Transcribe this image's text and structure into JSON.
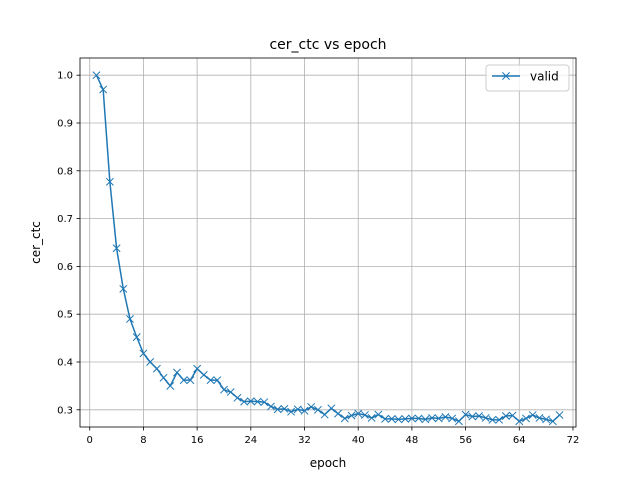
{
  "chart_data": {
    "type": "line",
    "title": "cer_ctc vs epoch",
    "xlabel": "epoch",
    "ylabel": "cer_ctc",
    "xlim": [
      -1.45,
      72.45
    ],
    "ylim": [
      0.264,
      1.036
    ],
    "xticks": [
      0,
      8,
      16,
      24,
      32,
      40,
      48,
      56,
      64,
      72
    ],
    "yticks": [
      0.3,
      0.4,
      0.5,
      0.6,
      0.7,
      0.8,
      0.9,
      1.0
    ],
    "ytick_labels": [
      "0.3",
      "0.4",
      "0.5",
      "0.6",
      "0.7",
      "0.8",
      "0.9",
      "1.0"
    ],
    "grid": true,
    "legend_position": "top-right",
    "series": [
      {
        "name": "valid",
        "color": "#1f77b4",
        "marker": "x",
        "x": [
          1,
          2,
          3,
          4,
          5,
          6,
          7,
          8,
          9,
          10,
          11,
          12,
          13,
          14,
          15,
          16,
          17,
          18,
          19,
          20,
          21,
          22,
          23,
          24,
          25,
          26,
          27,
          28,
          29,
          30,
          31,
          32,
          33,
          34,
          35,
          36,
          37,
          38,
          39,
          40,
          41,
          42,
          43,
          44,
          45,
          46,
          47,
          48,
          49,
          50,
          51,
          52,
          53,
          54,
          55,
          56,
          57,
          58,
          59,
          60,
          61,
          62,
          63,
          64,
          65,
          66,
          67,
          68,
          69,
          70
        ],
        "y": [
          1.0,
          0.97,
          0.777,
          0.638,
          0.553,
          0.49,
          0.452,
          0.418,
          0.4,
          0.386,
          0.367,
          0.35,
          0.378,
          0.362,
          0.362,
          0.386,
          0.373,
          0.362,
          0.362,
          0.342,
          0.337,
          0.325,
          0.317,
          0.318,
          0.317,
          0.316,
          0.307,
          0.301,
          0.302,
          0.296,
          0.301,
          0.298,
          0.306,
          0.3,
          0.29,
          0.303,
          0.292,
          0.282,
          0.288,
          0.292,
          0.289,
          0.283,
          0.29,
          0.281,
          0.281,
          0.28,
          0.281,
          0.282,
          0.282,
          0.28,
          0.283,
          0.282,
          0.285,
          0.282,
          0.276,
          0.29,
          0.286,
          0.287,
          0.283,
          0.279,
          0.279,
          0.287,
          0.288,
          0.276,
          0.282,
          0.289,
          0.283,
          0.28,
          0.276,
          0.289
        ]
      }
    ]
  }
}
